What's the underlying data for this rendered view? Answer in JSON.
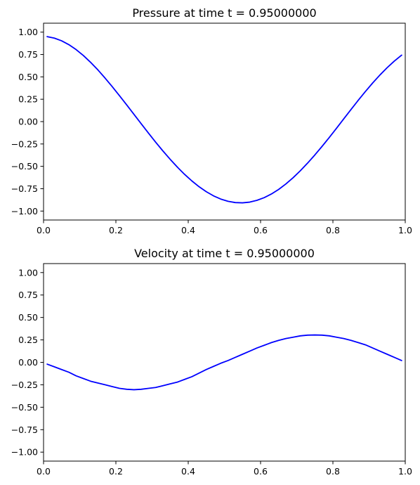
{
  "chart_data": [
    {
      "type": "line",
      "title": "Pressure at time t =     0.95000000",
      "xlabel": "",
      "ylabel": "",
      "xlim": [
        0.0,
        1.0
      ],
      "ylim": [
        -1.1,
        1.1
      ],
      "xticks": [
        "0.0",
        "0.2",
        "0.4",
        "0.6",
        "0.8",
        "1.0"
      ],
      "yticks": [
        "1.00",
        "0.75",
        "0.50",
        "0.25",
        "0.00",
        "−0.25",
        "−0.50",
        "−0.75",
        "−1.00"
      ],
      "grid": false,
      "series": [
        {
          "color": "#0000ff",
          "x": [
            0.01,
            0.03,
            0.05,
            0.07,
            0.09,
            0.11,
            0.13,
            0.15,
            0.17,
            0.19,
            0.21,
            0.23,
            0.25,
            0.27,
            0.29,
            0.31,
            0.33,
            0.35,
            0.37,
            0.39,
            0.41,
            0.43,
            0.45,
            0.47,
            0.49,
            0.51,
            0.53,
            0.55,
            0.57,
            0.59,
            0.61,
            0.63,
            0.65,
            0.67,
            0.69,
            0.71,
            0.73,
            0.75,
            0.77,
            0.79,
            0.81,
            0.83,
            0.85,
            0.87,
            0.89,
            0.91,
            0.93,
            0.95,
            0.97,
            0.99
          ],
          "y": [
            0.95,
            0.933,
            0.903,
            0.86,
            0.805,
            0.739,
            0.663,
            0.579,
            0.487,
            0.39,
            0.289,
            0.186,
            0.081,
            -0.024,
            -0.128,
            -0.23,
            -0.328,
            -0.421,
            -0.509,
            -0.59,
            -0.663,
            -0.728,
            -0.784,
            -0.83,
            -0.866,
            -0.891,
            -0.905,
            -0.908,
            -0.9,
            -0.88,
            -0.85,
            -0.809,
            -0.758,
            -0.697,
            -0.627,
            -0.549,
            -0.464,
            -0.373,
            -0.277,
            -0.177,
            -0.074,
            0.031,
            0.135,
            0.238,
            0.337,
            0.432,
            0.521,
            0.603,
            0.677,
            0.743
          ]
        }
      ]
    },
    {
      "type": "line",
      "title": "Velocity at time t =     0.95000000",
      "xlabel": "",
      "ylabel": "",
      "xlim": [
        0.0,
        1.0
      ],
      "ylim": [
        -1.1,
        1.1
      ],
      "xticks": [
        "0.0",
        "0.2",
        "0.4",
        "0.6",
        "0.8",
        "1.0"
      ],
      "yticks": [
        "1.00",
        "0.75",
        "0.50",
        "0.25",
        "0.00",
        "−0.25",
        "−0.50",
        "−0.75",
        "−1.00"
      ],
      "grid": false,
      "series": [
        {
          "color": "#0000ff",
          "x": [
            0.01,
            0.03,
            0.05,
            0.07,
            0.09,
            0.11,
            0.13,
            0.15,
            0.17,
            0.19,
            0.21,
            0.23,
            0.25,
            0.27,
            0.29,
            0.31,
            0.33,
            0.35,
            0.37,
            0.39,
            0.41,
            0.43,
            0.45,
            0.47,
            0.49,
            0.51,
            0.53,
            0.55,
            0.57,
            0.59,
            0.61,
            0.63,
            0.65,
            0.67,
            0.69,
            0.71,
            0.73,
            0.75,
            0.77,
            0.79,
            0.81,
            0.83,
            0.85,
            0.87,
            0.89,
            0.91,
            0.93,
            0.95,
            0.97,
            0.99
          ],
          "y": [
            -0.02,
            -0.05,
            -0.08,
            -0.11,
            -0.15,
            -0.18,
            -0.21,
            -0.23,
            -0.25,
            -0.27,
            -0.29,
            -0.3,
            -0.305,
            -0.3,
            -0.29,
            -0.28,
            -0.26,
            -0.24,
            -0.22,
            -0.19,
            -0.16,
            -0.12,
            -0.08,
            -0.045,
            -0.01,
            0.02,
            0.055,
            0.09,
            0.125,
            0.16,
            0.19,
            0.22,
            0.245,
            0.265,
            0.28,
            0.295,
            0.303,
            0.305,
            0.303,
            0.295,
            0.28,
            0.265,
            0.245,
            0.22,
            0.195,
            0.16,
            0.125,
            0.09,
            0.055,
            0.02
          ]
        }
      ]
    }
  ]
}
